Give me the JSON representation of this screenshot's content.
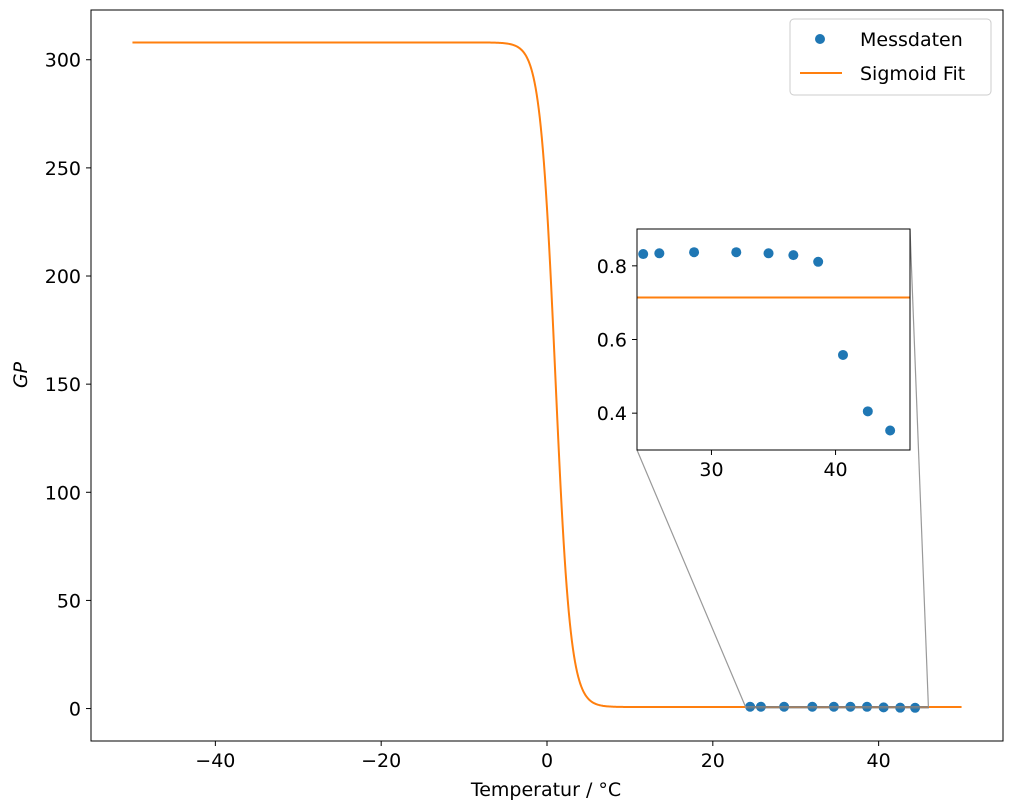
{
  "chart_data": {
    "type": "scatter",
    "xlabel": "Temperatur / °C",
    "ylabel": "GP",
    "xlim": [
      -55,
      55
    ],
    "ylim": [
      -15,
      323
    ],
    "xticks": [
      -40,
      -20,
      0,
      20,
      40
    ],
    "yticks": [
      0,
      50,
      100,
      150,
      200,
      250,
      300
    ],
    "legend": {
      "position": "top-right",
      "entries": [
        "Messdaten",
        "Sigmoid Fit"
      ]
    },
    "series": [
      {
        "name": "Messdaten",
        "kind": "scatter",
        "color": "#1f77b4",
        "x": [
          24.5,
          25.8,
          28.6,
          32.0,
          34.6,
          36.6,
          38.6,
          40.6,
          42.6,
          44.4
        ],
        "y": [
          0.832,
          0.834,
          0.837,
          0.837,
          0.834,
          0.829,
          0.811,
          0.558,
          0.405,
          0.353
        ]
      },
      {
        "name": "Sigmoid Fit",
        "kind": "line",
        "color": "#ff7f0e",
        "function": "sigmoid",
        "x_range": [
          -50,
          50
        ],
        "upper": 308,
        "lower": 0.714,
        "midpoint": 1.0,
        "slope": 1.1
      }
    ],
    "inset": {
      "xlim": [
        24,
        46
      ],
      "ylim": [
        0.3,
        0.9
      ],
      "xticks": [
        30,
        40
      ],
      "yticks": [
        0.4,
        0.6,
        0.8
      ],
      "yticklabels": [
        "0.4",
        "0.6",
        "0.8"
      ]
    }
  }
}
